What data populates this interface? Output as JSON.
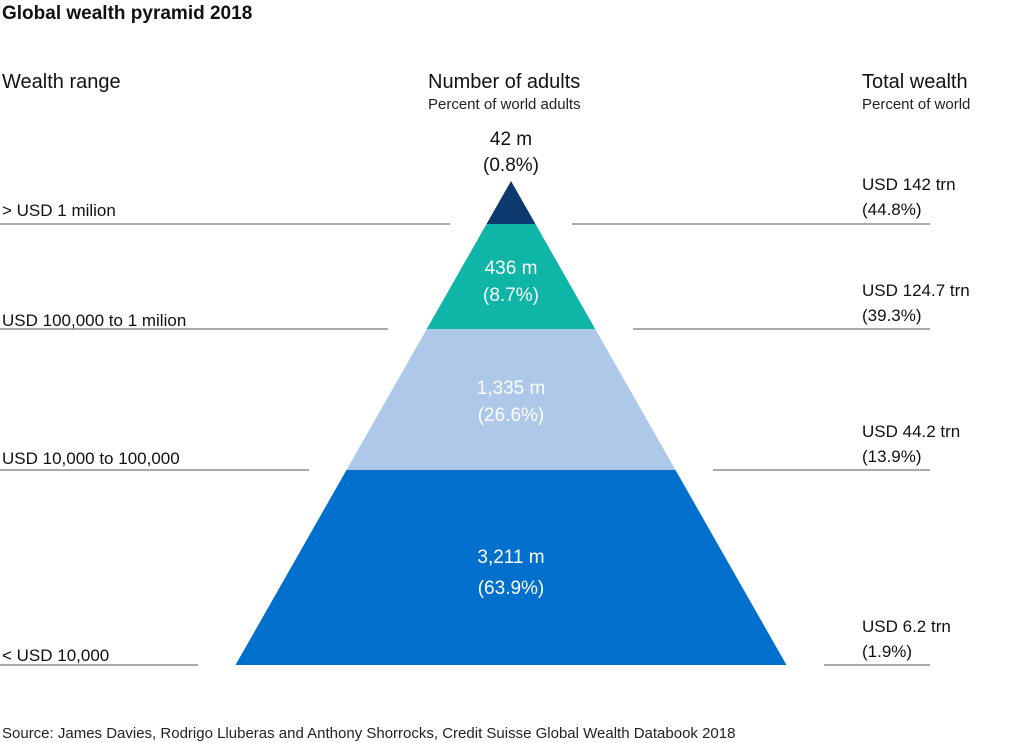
{
  "chart_data": {
    "type": "pyramid",
    "title": "Global wealth pyramid 2018",
    "columns": {
      "left_header": "Wealth range",
      "middle_header": "Number of adults",
      "middle_subheader": "Percent of world adults",
      "right_header": "Total wealth",
      "right_subheader": "Percent of world"
    },
    "levels": [
      {
        "range": "> USD 1 milion",
        "adults": "42 m",
        "adults_pct": "(0.8%)",
        "wealth": "USD 142 trn",
        "wealth_pct": "(44.8%)",
        "adults_millions": 42,
        "wealth_trillions": 142,
        "color": "#0d3a6e"
      },
      {
        "range": "USD 100,000 to 1 milion",
        "adults": "436 m",
        "adults_pct": "(8.7%)",
        "wealth": "USD 124.7 trn",
        "wealth_pct": "(39.3%)",
        "adults_millions": 436,
        "wealth_trillions": 124.7,
        "color": "#0fb5a7"
      },
      {
        "range": "USD 10,000 to 100,000",
        "adults": "1,335 m",
        "adults_pct": "(26.6%)",
        "wealth": "USD 44.2 trn",
        "wealth_pct": "(13.9%)",
        "adults_millions": 1335,
        "wealth_trillions": 44.2,
        "color": "#adc8e8"
      },
      {
        "range": "< USD 10,000",
        "adults": "3,211 m",
        "adults_pct": "(63.9%)",
        "wealth": "USD 6.2 trn",
        "wealth_pct": "(1.9%)",
        "adults_millions": 3211,
        "wealth_trillions": 6.2,
        "color": "#0070cc"
      }
    ],
    "source": "Source: James Davies, Rodrigo Lluberas and Anthony Shorrocks, Credit Suisse Global Wealth Databook 2018"
  }
}
